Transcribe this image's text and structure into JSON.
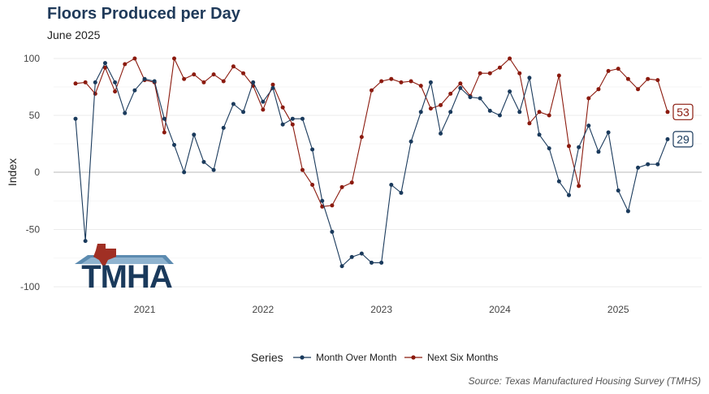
{
  "chart_data": {
    "type": "line",
    "title": "Floors Produced per Day",
    "subtitle": "June 2025",
    "ylabel": "Index",
    "xlabel": "",
    "caption": "Source: Texas Manufactured Housing Survey (TMHS)",
    "ylim": [
      -100,
      100
    ],
    "yticks": [
      -100,
      -50,
      0,
      50,
      100
    ],
    "ytick_labels": [
      "-100",
      "-50",
      "0",
      "50",
      "100"
    ],
    "xticks": [
      "2021",
      "2022",
      "2023",
      "2024",
      "2025"
    ],
    "x": [
      "2020-06",
      "2020-07",
      "2020-08",
      "2020-09",
      "2020-10",
      "2020-11",
      "2020-12",
      "2021-01",
      "2021-02",
      "2021-03",
      "2021-04",
      "2021-05",
      "2021-06",
      "2021-07",
      "2021-08",
      "2021-09",
      "2021-10",
      "2021-11",
      "2021-12",
      "2022-01",
      "2022-02",
      "2022-03",
      "2022-04",
      "2022-05",
      "2022-06",
      "2022-07",
      "2022-08",
      "2022-09",
      "2022-10",
      "2022-11",
      "2022-12",
      "2023-01",
      "2023-02",
      "2023-03",
      "2023-04",
      "2023-05",
      "2023-06",
      "2023-07",
      "2023-08",
      "2023-09",
      "2023-10",
      "2023-11",
      "2023-12",
      "2024-01",
      "2024-02",
      "2024-03",
      "2024-04",
      "2024-05",
      "2024-06",
      "2024-07",
      "2024-08",
      "2024-09",
      "2024-10",
      "2024-11",
      "2024-12",
      "2025-01",
      "2025-02",
      "2025-03",
      "2025-04",
      "2025-05",
      "2025-06"
    ],
    "legend_title": "Series",
    "legend_position": "bottom",
    "grid": true,
    "series": [
      {
        "name": "Month Over Month",
        "color": "#1a3a5c",
        "end_label": "29",
        "values": [
          47,
          -60,
          79,
          96,
          79,
          52,
          72,
          82,
          80,
          47,
          24,
          0,
          33,
          9,
          2,
          39,
          60,
          53,
          79,
          62,
          74,
          42,
          47,
          47,
          20,
          -25,
          -52,
          -82,
          -74,
          -71,
          -79,
          -79,
          -11,
          -18,
          27,
          53,
          79,
          34,
          53,
          74,
          66,
          65,
          54,
          50,
          71,
          53,
          83,
          33,
          21,
          -8,
          -20,
          22,
          41,
          18,
          35,
          -16,
          -34,
          4,
          7,
          7,
          29
        ]
      },
      {
        "name": "Next Six Months",
        "color": "#8b1a0e",
        "end_label": "53",
        "values": [
          78,
          79,
          69,
          92,
          71,
          95,
          100,
          81,
          79,
          35,
          100,
          82,
          86,
          79,
          86,
          80,
          93,
          87,
          76,
          55,
          77,
          57,
          42,
          2,
          -11,
          -30,
          -29,
          -13,
          -9,
          31,
          72,
          80,
          82,
          79,
          80,
          76,
          56,
          59,
          69,
          78,
          67,
          87,
          87,
          92,
          100,
          87,
          43,
          53,
          50,
          85,
          23,
          -12,
          65,
          73,
          89,
          91,
          82,
          73,
          82,
          81,
          53
        ]
      }
    ]
  },
  "logo": {
    "text": "TMHA"
  }
}
